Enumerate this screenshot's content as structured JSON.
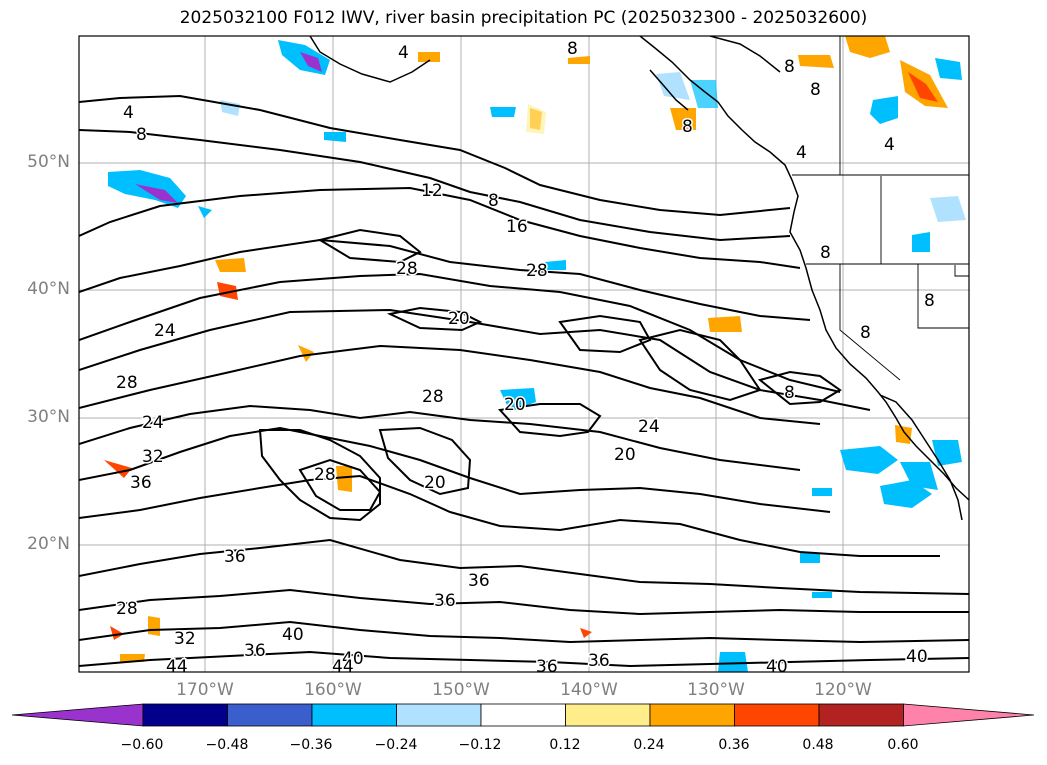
{
  "title": "2025032100 F012 IWV, river basin precipitation PC (2025032300 - 2025032600)",
  "lat_labels": [
    "50°N",
    "40°N",
    "30°N",
    "20°N"
  ],
  "lon_labels": [
    "170°W",
    "160°W",
    "150°W",
    "140°W",
    "130°W",
    "120°W"
  ],
  "contour_labels": [
    "4",
    "8",
    "8",
    "8",
    "4",
    "8",
    "8",
    "4",
    "4",
    "12",
    "8",
    "16",
    "28",
    "28",
    "24",
    "20",
    "28",
    "28",
    "24",
    "20",
    "32",
    "36",
    "24",
    "20",
    "28",
    "20",
    "36",
    "36",
    "36",
    "28",
    "32",
    "40",
    "36",
    "44",
    "40",
    "36",
    "36",
    "40",
    "44",
    "40",
    "8",
    "8",
    "8",
    "8"
  ],
  "colorbar": {
    "ticks": [
      "−0.60",
      "−0.48",
      "−0.36",
      "−0.24",
      "−0.12",
      "0.12",
      "0.24",
      "0.36",
      "0.48",
      "0.60"
    ],
    "colors": [
      "#9a32cd",
      "#00008b",
      "#3a5fcd",
      "#00bfff",
      "#b0e2ff",
      "#ffffff",
      "#ffec8b",
      "#ffa500",
      "#ff4500",
      "#b22222",
      "#ff82ab"
    ]
  }
}
